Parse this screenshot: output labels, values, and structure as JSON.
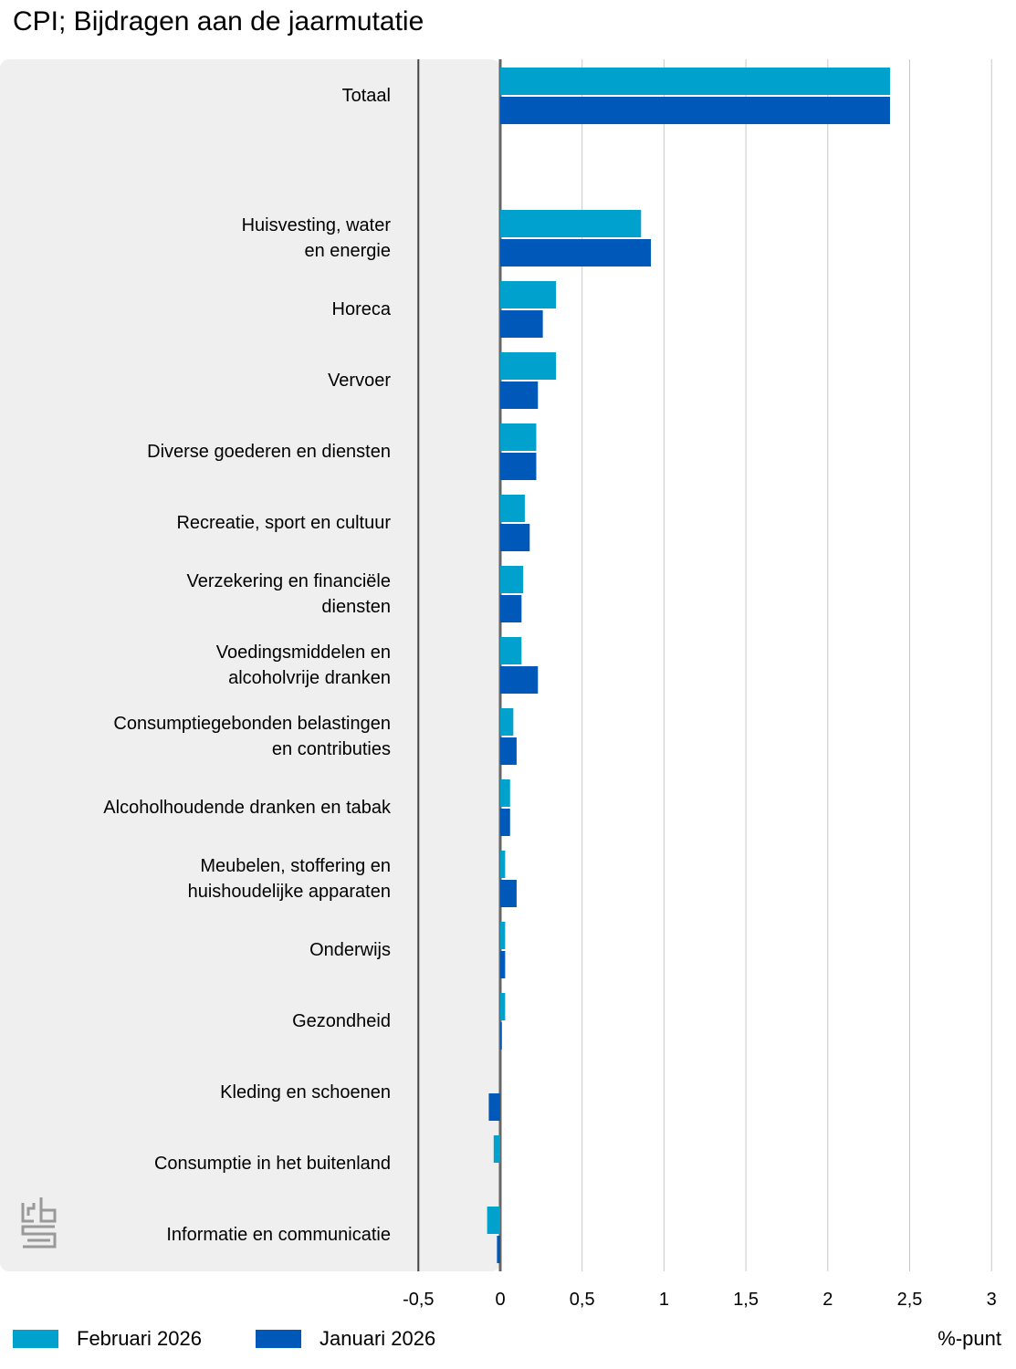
{
  "title": "CPI; Bijdragen aan de jaarmutatie",
  "logo_text": "cbs",
  "legend": [
    {
      "label": "Februari 2026",
      "color": "#00a1cd"
    },
    {
      "label": "Januari 2026",
      "color": "#0058b8"
    }
  ],
  "unit_label": "%-punt",
  "chart_data": {
    "type": "bar",
    "orientation": "horizontal",
    "title": "CPI; Bijdragen aan de jaarmutatie",
    "xlabel": "%-punt",
    "xlim": [
      -0.5,
      3
    ],
    "xticks": [
      {
        "value": -0.5,
        "label": "-0,5"
      },
      {
        "value": 0,
        "label": "0"
      },
      {
        "value": 0.5,
        "label": "0,5"
      },
      {
        "value": 1,
        "label": "1"
      },
      {
        "value": 1.5,
        "label": "1,5"
      },
      {
        "value": 2,
        "label": "2"
      },
      {
        "value": 2.5,
        "label": "2,5"
      },
      {
        "value": 3,
        "label": "3"
      }
    ],
    "grid": true,
    "categories": [
      [
        "Totaal"
      ],
      [
        "Huisvesting, water",
        "en energie"
      ],
      [
        "Horeca"
      ],
      [
        "Vervoer"
      ],
      [
        "Diverse goederen en diensten"
      ],
      [
        "Recreatie, sport en cultuur"
      ],
      [
        "Verzekering en financiële",
        "diensten"
      ],
      [
        "Voedingsmiddelen en",
        "alcoholvrije dranken"
      ],
      [
        "Consumptiegebonden belastingen",
        "en contributies"
      ],
      [
        "Alcoholhoudende dranken en tabak"
      ],
      [
        "Meubelen, stoffering en",
        "huishoudelijke apparaten"
      ],
      [
        "Onderwijs"
      ],
      [
        "Gezondheid"
      ],
      [
        "Kleding en schoenen"
      ],
      [
        "Consumptie in het buitenland"
      ],
      [
        "Informatie en communicatie"
      ]
    ],
    "series": [
      {
        "name": "Februari 2026",
        "color": "#00a1cd",
        "values": [
          2.38,
          0.86,
          0.34,
          0.34,
          0.22,
          0.15,
          0.14,
          0.13,
          0.08,
          0.06,
          0.03,
          0.03,
          0.03,
          0.0,
          -0.04,
          -0.08
        ]
      },
      {
        "name": "Januari 2026",
        "color": "#0058b8",
        "values": [
          2.38,
          0.92,
          0.26,
          0.23,
          0.22,
          0.18,
          0.13,
          0.23,
          0.1,
          0.06,
          0.1,
          0.03,
          0.01,
          -0.07,
          0.0,
          -0.02
        ]
      }
    ],
    "legend_position": "bottom-left"
  }
}
